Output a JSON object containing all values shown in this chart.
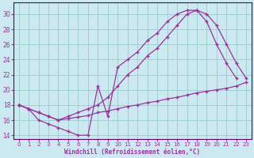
{
  "background_color": "#cce8f0",
  "grid_color": "#99cccc",
  "line_color": "#993399",
  "spine_color": "#660066",
  "xlim": [
    -0.5,
    23.5
  ],
  "ylim": [
    13.5,
    31.5
  ],
  "yticks": [
    14,
    16,
    18,
    20,
    22,
    24,
    26,
    28,
    30
  ],
  "xticks": [
    0,
    1,
    2,
    3,
    4,
    5,
    6,
    7,
    8,
    9,
    10,
    11,
    12,
    13,
    14,
    15,
    16,
    17,
    18,
    19,
    20,
    21,
    22,
    23
  ],
  "xlabel": "Windchill (Refroidissement éolien,°C)",
  "curve_A_x": [
    0,
    1,
    2,
    3,
    4,
    5,
    6,
    7,
    8,
    9,
    10,
    11,
    12,
    13,
    14,
    15,
    16,
    17,
    18,
    19,
    20,
    21,
    22,
    23
  ],
  "curve_A_y": [
    18.0,
    17.5,
    17.0,
    16.5,
    16.0,
    16.5,
    17.0,
    17.5,
    18.0,
    19.0,
    20.5,
    22.0,
    23.0,
    24.5,
    25.5,
    27.0,
    28.5,
    30.0,
    30.5,
    30.0,
    28.5,
    26.0,
    23.5,
    21.5
  ],
  "curve_B_x": [
    0,
    1,
    2,
    3,
    4,
    5,
    6,
    7,
    8,
    9,
    10,
    11,
    12,
    13,
    14,
    15,
    16,
    17,
    18,
    19,
    20,
    21,
    22,
    23
  ],
  "curve_B_y": [
    18.0,
    17.5,
    17.0,
    16.5,
    16.0,
    16.2,
    16.4,
    16.6,
    17.0,
    17.2,
    17.5,
    17.8,
    18.0,
    18.3,
    18.5,
    18.8,
    19.0,
    19.3,
    19.6,
    19.8,
    20.0,
    20.2,
    20.5,
    21.0
  ],
  "curve_C_x": [
    0,
    1,
    2,
    3,
    4,
    5,
    6,
    7,
    8,
    9,
    10,
    11,
    12,
    13,
    14,
    15,
    16,
    17,
    18,
    19,
    20,
    21,
    22
  ],
  "curve_C_y": [
    18.0,
    17.5,
    16.0,
    15.5,
    15.0,
    14.5,
    14.0,
    14.0,
    20.5,
    16.5,
    23.0,
    24.0,
    25.0,
    26.5,
    27.5,
    29.0,
    30.0,
    30.5,
    30.5,
    29.0,
    26.0,
    23.5,
    21.5
  ]
}
